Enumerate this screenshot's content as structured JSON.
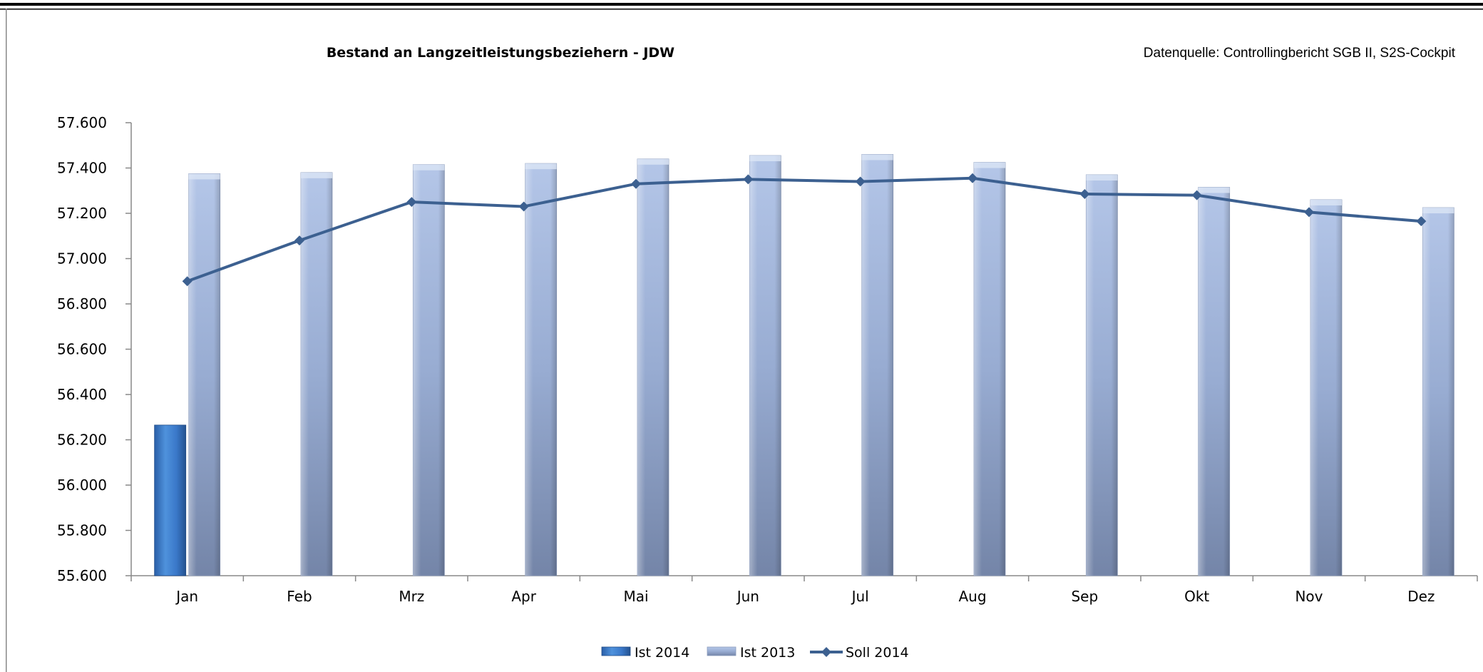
{
  "chart_data": {
    "type": "bar",
    "title": "Bestand an Langzeitleistungsbeziehern - JDW",
    "source_note": "Datenquelle: Controllingbericht SGB II, S2S-Cockpit",
    "categories": [
      "Jan",
      "Feb",
      "Mrz",
      "Apr",
      "Mai",
      "Jun",
      "Jul",
      "Aug",
      "Sep",
      "Okt",
      "Nov",
      "Dez"
    ],
    "ylim": [
      55600,
      57600
    ],
    "yticks": [
      55600,
      55800,
      56000,
      56200,
      56400,
      56600,
      56800,
      57000,
      57200,
      57400,
      57600
    ],
    "ytick_labels": [
      "55.600",
      "55.800",
      "56.000",
      "56.200",
      "56.400",
      "56.600",
      "56.800",
      "57.000",
      "57.200",
      "57.400",
      "57.600"
    ],
    "grid": false,
    "legend_position": "bottom",
    "series": [
      {
        "name": "Ist 2014",
        "kind": "bar",
        "color": "#3a78c9",
        "values": [
          56265,
          null,
          null,
          null,
          null,
          null,
          null,
          null,
          null,
          null,
          null,
          null
        ]
      },
      {
        "name": "Ist 2013",
        "kind": "bar",
        "color": "#97aad0",
        "values": [
          57375,
          57380,
          57415,
          57420,
          57440,
          57455,
          57460,
          57425,
          57370,
          57315,
          57260,
          57225
        ]
      },
      {
        "name": "Soll 2014",
        "kind": "line",
        "color": "#3c6090",
        "values": [
          56900,
          57080,
          57250,
          57230,
          57330,
          57350,
          57340,
          57355,
          57285,
          57280,
          57205,
          57165
        ]
      }
    ]
  }
}
